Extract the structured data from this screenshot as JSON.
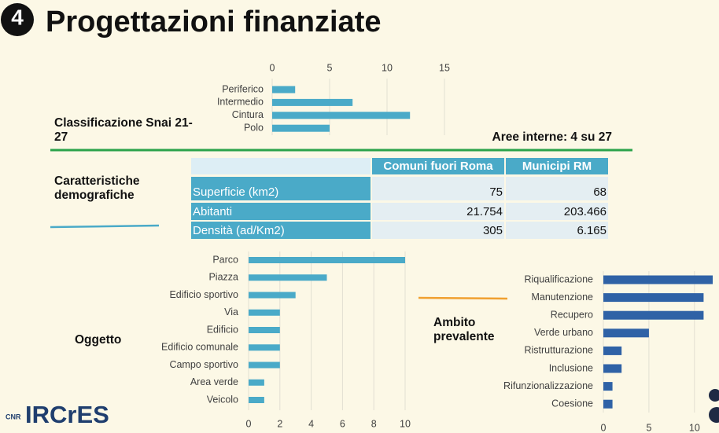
{
  "title": "Progettazioni finanziate",
  "badge": "4",
  "logo": {
    "org": "CNR",
    "name": "IRCrES"
  },
  "chart_data": [
    {
      "type": "bar",
      "orientation": "horizontal",
      "title": "Classificazione Snai 21-27",
      "annotation": "Aree interne: 4 su 27",
      "categories": [
        "Periferico",
        "Intermedio",
        "Cintura",
        "Polo"
      ],
      "values": [
        2,
        7,
        12,
        5
      ],
      "color": "#4aaac8",
      "xlim": [
        0,
        15
      ],
      "xticks": [
        0,
        5,
        10,
        15
      ],
      "x_axis_position": "top",
      "grid": true
    },
    {
      "type": "bar",
      "orientation": "horizontal",
      "title": "Oggetto",
      "categories": [
        "Parco",
        "Piazza",
        "Edificio sportivo",
        "Via",
        "Edificio",
        "Edificio comunale",
        "Campo sportivo",
        "Area verde",
        "Veicolo"
      ],
      "values": [
        10,
        5,
        3,
        2,
        2,
        2,
        2,
        1,
        1
      ],
      "color": "#4aaac8",
      "xlim": [
        0,
        10
      ],
      "xticks": [
        0,
        2,
        4,
        6,
        8,
        10
      ],
      "x_axis_position": "bottom",
      "grid": true
    },
    {
      "type": "bar",
      "orientation": "horizontal",
      "title": "Ambito prevalente",
      "categories": [
        "Riqualificazione",
        "Manutenzione",
        "Recupero",
        "Verde urbano",
        "Ristrutturazione",
        "Inclusione",
        "Rifunzionalizzazione",
        "Coesione"
      ],
      "values": [
        12,
        11,
        11,
        5,
        2,
        2,
        1,
        1
      ],
      "color": "#2f62a6",
      "xlim": [
        0,
        12
      ],
      "xticks": [
        0,
        5,
        10
      ],
      "x_axis_position": "bottom",
      "grid": true
    }
  ],
  "table": {
    "title": "Caratteristiche demografiche",
    "header": [
      "",
      "Comuni fuori Roma",
      "Municipi RM"
    ],
    "rows": [
      [
        "Superficie (km2)",
        "75",
        "68"
      ],
      [
        "Abitanti",
        "21.754",
        "203.466"
      ],
      [
        "Densità (ad/Km2)",
        "305",
        "6.165"
      ]
    ]
  }
}
